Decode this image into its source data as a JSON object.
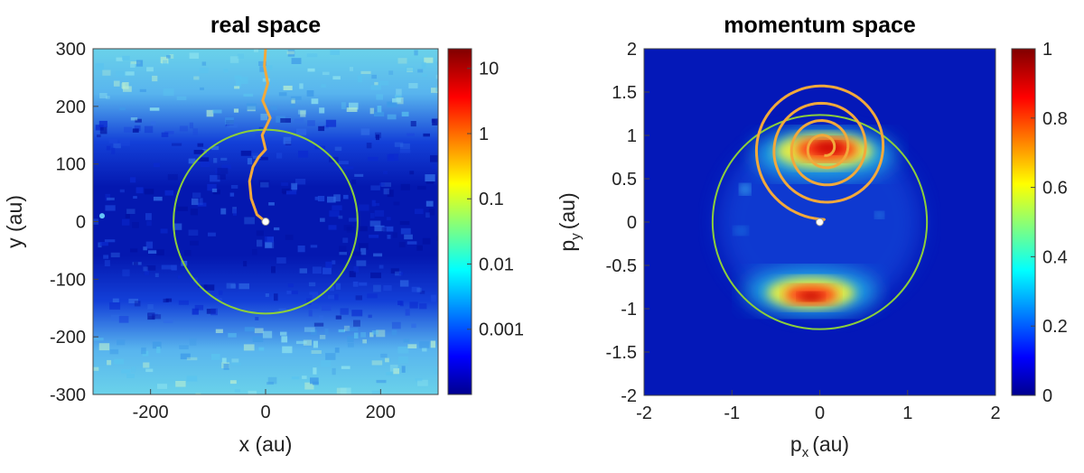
{
  "chart_data": [
    {
      "type": "heatmap",
      "title": "real space",
      "xlabel": "x (au)",
      "ylabel": "y (au)",
      "xlim": [
        -300,
        300
      ],
      "ylim": [
        -300,
        300
      ],
      "x_ticks": [
        -200,
        0,
        200
      ],
      "y_ticks": [
        300,
        200,
        100,
        0,
        -100,
        -200,
        -300
      ],
      "colorbar": {
        "scale": "log",
        "range": [
          0.0001,
          20
        ],
        "ticks": [
          10,
          1,
          0.1,
          0.01,
          0.001
        ],
        "tick_labels": [
          "10",
          "1",
          "0.1",
          "0.01",
          "0.001"
        ],
        "colormap": "jet"
      },
      "circle": {
        "center": [
          0,
          0
        ],
        "radius": 160,
        "color": "#8ccf3a"
      },
      "trajectory": {
        "color": "#f2a93b",
        "points": [
          [
            0,
            300
          ],
          [
            -2,
            270
          ],
          [
            4,
            240
          ],
          [
            -5,
            210
          ],
          [
            8,
            180
          ],
          [
            -6,
            150
          ],
          [
            0,
            125
          ],
          [
            -12,
            112
          ],
          [
            -22,
            95
          ],
          [
            -28,
            70
          ],
          [
            -25,
            40
          ],
          [
            -15,
            12
          ],
          [
            0,
            0
          ]
        ]
      }
    },
    {
      "type": "heatmap",
      "title": "momentum space",
      "xlabel_main": "p",
      "xlabel_sub": "x",
      "xlabel_unit": "(au)",
      "ylabel_main": "p",
      "ylabel_sub": "y",
      "ylabel_unit": "(au)",
      "xlim": [
        -2,
        2
      ],
      "ylim": [
        -2,
        2
      ],
      "x_ticks": [
        -2,
        -1,
        0,
        1,
        2
      ],
      "y_ticks": [
        2,
        1.5,
        1,
        0.5,
        0,
        -0.5,
        -1,
        -1.5,
        -2
      ],
      "y_tick_labels": [
        "2",
        "1.5",
        "1",
        "0.5",
        "0",
        "-0.5",
        "-1",
        "-1.5",
        "-2"
      ],
      "colorbar": {
        "scale": "linear",
        "range": [
          0,
          1
        ],
        "ticks": [
          1,
          0.8,
          0.6,
          0.4,
          0.2,
          0
        ],
        "tick_labels": [
          "1",
          "0.8",
          "0.6",
          "0.4",
          "0.2",
          "0"
        ],
        "colormap": "jet"
      },
      "circle": {
        "center": [
          0,
          0
        ],
        "radius": 1.22,
        "color": "#8ccf3a"
      },
      "spiral_center": [
        0.05,
        0.85
      ],
      "spiral_radii": [
        0.82,
        0.62,
        0.42,
        0.22,
        0.08
      ],
      "spiral_start": [
        0,
        0
      ],
      "spiral_color": "#f2a93b"
    }
  ]
}
